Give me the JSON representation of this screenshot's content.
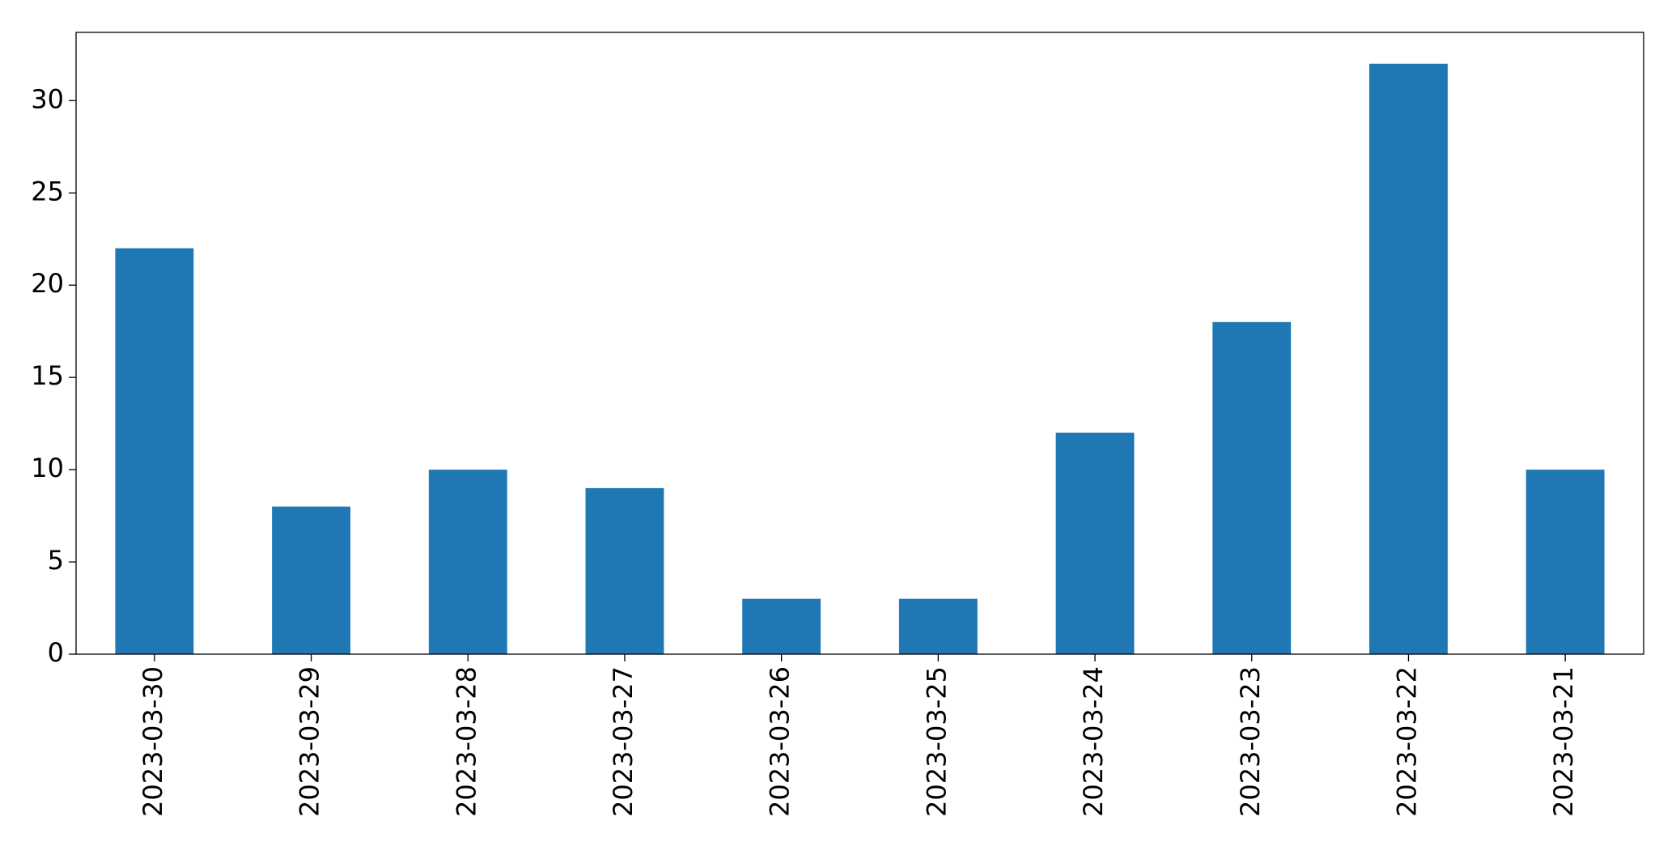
{
  "chart_data": {
    "type": "bar",
    "categories": [
      "2023-03-30",
      "2023-03-29",
      "2023-03-28",
      "2023-03-27",
      "2023-03-26",
      "2023-03-25",
      "2023-03-24",
      "2023-03-23",
      "2023-03-22",
      "2023-03-21"
    ],
    "values": [
      22,
      8,
      10,
      9,
      3,
      3,
      12,
      18,
      32,
      10
    ],
    "color": "#1f77b4",
    "ylim": [
      0,
      33.7
    ],
    "yticks": [
      0,
      5,
      10,
      15,
      20,
      25,
      30
    ],
    "grid": false
  }
}
